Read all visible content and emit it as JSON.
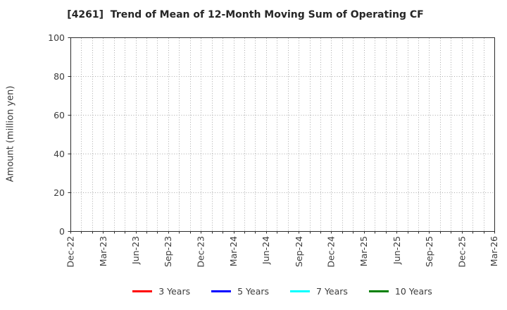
{
  "figure": {
    "background": "#ffffff"
  },
  "chart_data": {
    "type": "line",
    "title": "[4261]  Trend of Mean of 12-Month Moving Sum of Operating CF",
    "xlabel": "",
    "ylabel": "Amount (million yen)",
    "ylim": [
      0,
      100
    ],
    "y_ticks": [
      0,
      20,
      40,
      60,
      80,
      100
    ],
    "x_tick_labels": [
      "Dec-22",
      "Mar-23",
      "Jun-23",
      "Sep-23",
      "Dec-23",
      "Mar-24",
      "Jun-24",
      "Sep-24",
      "Dec-24",
      "Mar-25",
      "Jun-25",
      "Sep-25",
      "Dec-25",
      "Mar-26"
    ],
    "x_months_per_label": 3,
    "x_total_intervals": 39,
    "grid": true,
    "grid_style": "dotted",
    "legend_position": "bottom-center",
    "plot_is_empty": true,
    "series": [
      {
        "name": "3 Years",
        "color": "#ff0000",
        "values": []
      },
      {
        "name": "5 Years",
        "color": "#0000ff",
        "values": []
      },
      {
        "name": "7 Years",
        "color": "#00ffff",
        "values": []
      },
      {
        "name": "10 Years",
        "color": "#008000",
        "values": []
      }
    ]
  },
  "colors": {
    "axis": "#2b2b2b",
    "grid": "#aaaaaa",
    "text": "#3c3c3c"
  }
}
